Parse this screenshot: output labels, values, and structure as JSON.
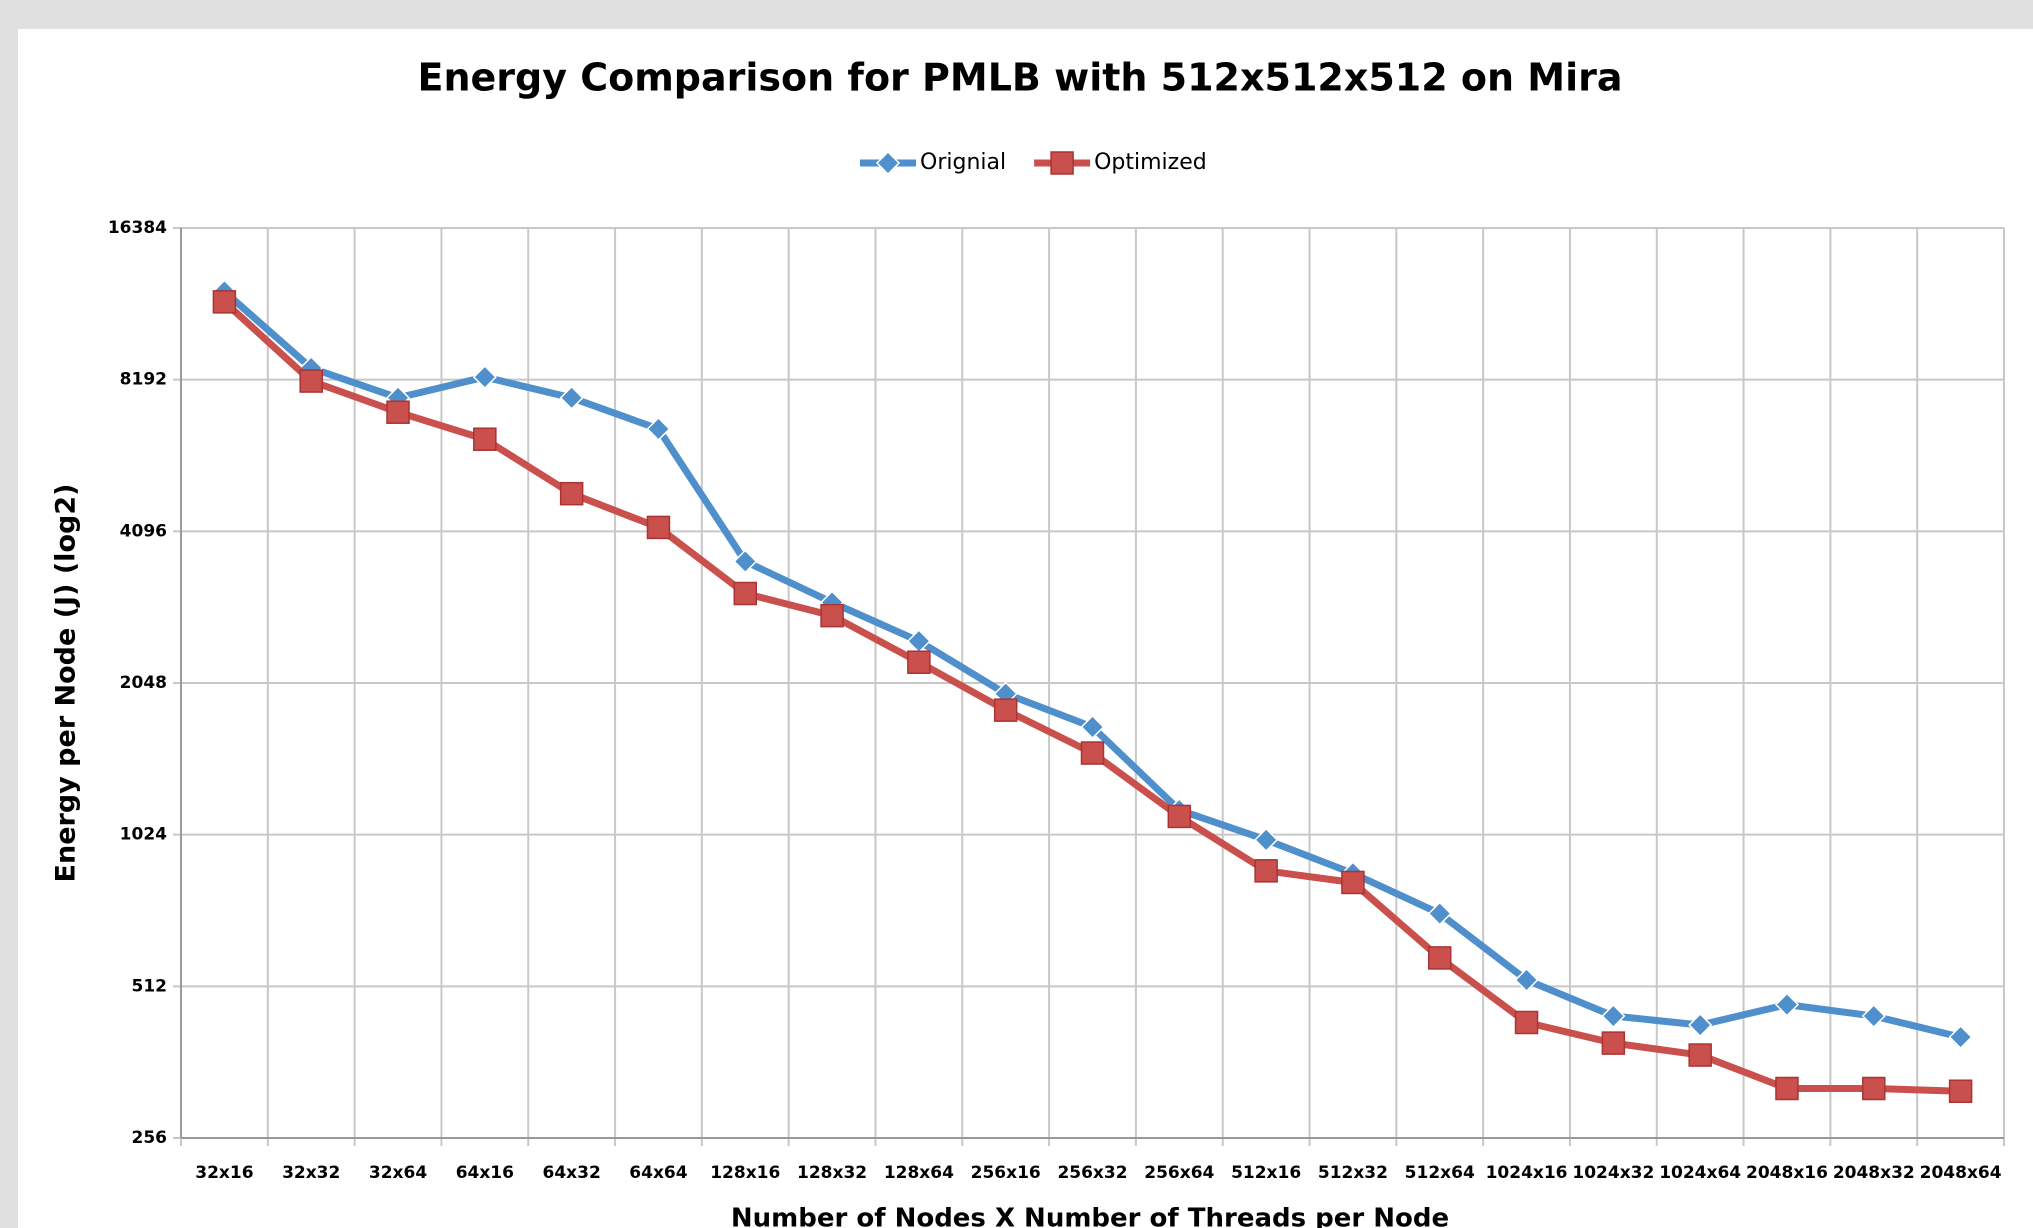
{
  "chart_data": {
    "type": "line",
    "title": "Energy Comparison for PMLB with 512x512x512 on Mira",
    "x_label": "Number of Nodes X Number of Threads per Node",
    "y_label": "Energy per Node (J) (log2)",
    "categories": [
      "32x16",
      "32x32",
      "32x64",
      "64x16",
      "64x32",
      "64x64",
      "128x16",
      "128x32",
      "128x64",
      "256x16",
      "256x32",
      "256x64",
      "512x16",
      "512x32",
      "512x64",
      "1024x16",
      "1024x32",
      "1024x64",
      "2048x16",
      "2048x32",
      "2048x64"
    ],
    "series": [
      {
        "name": "Orignial",
        "color": "#4f8fcc",
        "marker": "diamond",
        "values": [
          12260,
          8640,
          7540,
          8290,
          7540,
          6540,
          3570,
          2960,
          2480,
          1950,
          1675,
          1146,
          1000,
          858,
          714,
          527,
          447,
          429,
          471,
          447,
          406
        ]
      },
      {
        "name": "Optimized",
        "color": "#c9504d",
        "marker": "square",
        "values": [
          11690,
          8140,
          7060,
          6240,
          4865,
          4170,
          3083,
          2786,
          2252,
          1809,
          1487,
          1113,
          868,
          823,
          583,
          434,
          395,
          374,
          321,
          321,
          317
        ]
      }
    ],
    "log_scale": "y",
    "log_base": 2,
    "ylim": [
      256,
      16384
    ],
    "yticks": [
      256,
      512,
      1024,
      2048,
      4096,
      8192,
      16384
    ],
    "grid": true,
    "legend": "top"
  }
}
